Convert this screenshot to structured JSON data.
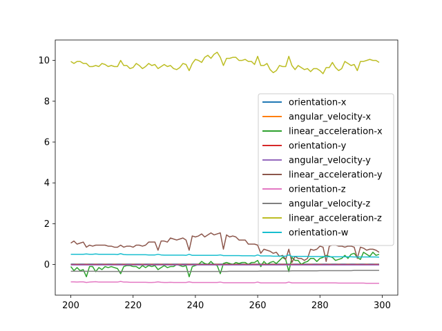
{
  "chart_data": {
    "type": "line",
    "title": "",
    "xlabel": "",
    "ylabel": "",
    "xlim": [
      195,
      305
    ],
    "ylim": [
      -1.5,
      11.0
    ],
    "xticks": [
      200,
      220,
      240,
      260,
      280,
      300
    ],
    "yticks": [
      0,
      2,
      4,
      6,
      8,
      10
    ],
    "grid": false,
    "legend_position": "center-right",
    "x": [
      200,
      201,
      202,
      203,
      204,
      205,
      206,
      207,
      208,
      209,
      210,
      211,
      212,
      213,
      214,
      215,
      216,
      217,
      218,
      219,
      220,
      221,
      222,
      223,
      224,
      225,
      226,
      227,
      228,
      229,
      230,
      231,
      232,
      233,
      234,
      235,
      236,
      237,
      238,
      239,
      240,
      241,
      242,
      243,
      244,
      245,
      246,
      247,
      248,
      249,
      250,
      251,
      252,
      253,
      254,
      255,
      256,
      257,
      258,
      259,
      260,
      261,
      262,
      263,
      264,
      265,
      266,
      267,
      268,
      269,
      270,
      271,
      272,
      273,
      274,
      275,
      276,
      277,
      278,
      279,
      280,
      281,
      282,
      283,
      284,
      285,
      286,
      287,
      288,
      289,
      290,
      291,
      292,
      293,
      294,
      295,
      296,
      297,
      298,
      299
    ],
    "series": [
      {
        "name": "orientation-x",
        "color": "#1f77b4",
        "values": [
          0.02,
          0.02,
          0.02,
          0.02,
          0.02,
          0.02,
          0.02,
          0.02,
          0.02,
          0.02,
          0.02,
          0.02,
          0.02,
          0.02,
          0.02,
          0.02,
          0.02,
          0.02,
          0.02,
          0.02,
          0.02,
          0.02,
          0.02,
          0.02,
          0.02,
          0.02,
          0.02,
          0.02,
          0.02,
          0.02,
          0.02,
          0.02,
          0.02,
          0.02,
          0.02,
          0.02,
          0.02,
          0.02,
          0.02,
          0.02,
          0.02,
          0.02,
          0.02,
          0.02,
          0.02,
          0.02,
          0.02,
          0.02,
          0.02,
          0.02,
          0.02,
          0.02,
          0.02,
          0.02,
          0.02,
          0.02,
          0.02,
          0.02,
          0.02,
          0.02,
          0.02,
          0.02,
          0.02,
          0.02,
          0.02,
          0.02,
          0.02,
          0.02,
          0.02,
          0.02,
          0.02,
          0.02,
          0.02,
          0.02,
          0.02,
          0.02,
          0.02,
          0.02,
          0.02,
          0.02,
          0.02,
          0.02,
          0.02,
          0.02,
          0.02,
          0.02,
          0.02,
          0.02,
          0.02,
          0.02,
          0.02,
          0.02,
          0.02,
          0.02,
          0.02,
          0.02,
          0.02,
          0.02,
          0.02,
          0.02
        ]
      },
      {
        "name": "angular_velocity-x",
        "color": "#ff7f0e",
        "values": [
          0.0,
          0.0,
          0.01,
          0.0,
          0.0,
          0.01,
          0.0,
          0.0,
          0.01,
          0.0,
          0.0,
          0.01,
          0.0,
          0.0,
          0.01,
          0.0,
          0.0,
          0.01,
          0.0,
          0.0,
          0.01,
          0.0,
          0.0,
          0.01,
          0.0,
          0.0,
          0.01,
          0.0,
          0.0,
          0.01,
          0.0,
          0.0,
          0.01,
          0.0,
          0.0,
          0.01,
          0.0,
          0.0,
          0.01,
          0.0,
          0.0,
          0.01,
          0.0,
          0.0,
          0.01,
          0.0,
          0.0,
          0.01,
          0.0,
          0.0,
          0.01,
          0.0,
          0.0,
          0.01,
          0.0,
          0.0,
          0.01,
          0.0,
          0.0,
          0.01,
          0.0,
          0.0,
          0.01,
          0.0,
          0.0,
          0.01,
          0.0,
          0.0,
          0.01,
          0.0,
          0.0,
          0.01,
          0.0,
          0.0,
          0.01,
          0.0,
          0.0,
          0.01,
          0.0,
          0.0,
          0.01,
          0.0,
          0.0,
          0.01,
          0.0,
          0.0,
          0.01,
          0.0,
          0.0,
          0.01,
          0.0,
          0.0,
          0.01,
          0.0,
          0.0,
          0.01,
          0.0,
          0.0,
          0.01,
          0.0
        ]
      },
      {
        "name": "linear_acceleration-x",
        "color": "#2ca02c",
        "values": [
          -0.1,
          -0.3,
          -0.15,
          -0.3,
          -0.25,
          -0.6,
          -0.1,
          -0.1,
          -0.35,
          -0.15,
          -0.25,
          -0.1,
          -0.15,
          -0.1,
          -0.15,
          -0.2,
          -0.45,
          -0.1,
          -0.05,
          -0.05,
          -0.1,
          -0.1,
          -0.2,
          -0.05,
          -0.15,
          -0.05,
          -0.1,
          -0.05,
          -0.25,
          -0.15,
          -0.05,
          -0.15,
          -0.1,
          -0.1,
          0.0,
          -0.05,
          -0.1,
          -0.05,
          -0.6,
          -0.1,
          -0.05,
          0.0,
          0.15,
          0.05,
          0.0,
          0.15,
          0.0,
          -0.05,
          -0.45,
          0.05,
          0.1,
          0.05,
          0.0,
          0.1,
          0.05,
          0.1,
          0.1,
          0.0,
          0.1,
          0.1,
          0.2,
          -0.1,
          0.15,
          0.0,
          0.1,
          0.15,
          0.05,
          0.2,
          0.35,
          0.25,
          -0.35,
          0.35,
          0.2,
          0.2,
          0.0,
          0.1,
          0.15,
          0.3,
          0.3,
          0.15,
          0.3,
          0.35,
          0.45,
          0.4,
          0.35,
          0.2,
          0.25,
          0.3,
          0.45,
          0.3,
          0.5,
          0.55,
          0.35,
          0.25,
          0.6,
          0.5,
          0.4,
          0.6,
          0.45,
          0.5
        ]
      },
      {
        "name": "orientation-y",
        "color": "#d62728",
        "values": [
          0.0,
          0.0,
          0.0,
          0.0,
          0.0,
          0.0,
          0.0,
          0.0,
          0.0,
          0.0,
          0.0,
          0.0,
          0.0,
          0.0,
          0.0,
          0.0,
          0.0,
          0.0,
          0.0,
          0.0,
          0.0,
          0.0,
          0.0,
          0.0,
          0.0,
          0.0,
          0.0,
          0.0,
          0.0,
          0.0,
          0.0,
          0.0,
          0.0,
          0.0,
          0.0,
          0.0,
          0.0,
          0.0,
          0.0,
          0.0,
          0.0,
          0.0,
          0.0,
          0.0,
          0.0,
          0.0,
          0.0,
          0.0,
          0.0,
          0.0,
          0.0,
          0.0,
          0.0,
          0.0,
          0.0,
          0.0,
          0.0,
          0.0,
          0.0,
          0.0,
          0.0,
          0.0,
          0.0,
          0.0,
          0.0,
          0.0,
          0.0,
          0.0,
          0.0,
          0.0,
          0.0,
          0.0,
          0.0,
          0.0,
          0.0,
          0.0,
          0.0,
          0.0,
          0.0,
          0.0,
          0.0,
          0.0,
          0.0,
          0.0,
          0.0,
          0.0,
          0.0,
          0.0,
          0.0,
          0.0,
          0.0,
          0.0,
          0.0,
          0.0,
          0.0,
          0.0,
          0.0,
          0.0,
          0.0,
          0.0
        ]
      },
      {
        "name": "angular_velocity-y",
        "color": "#9467bd",
        "values": [
          -0.02,
          -0.02,
          -0.02,
          -0.02,
          -0.02,
          -0.02,
          -0.02,
          -0.02,
          -0.02,
          -0.02,
          -0.02,
          -0.02,
          -0.02,
          -0.02,
          -0.02,
          -0.02,
          -0.02,
          -0.02,
          -0.02,
          -0.02,
          -0.02,
          -0.02,
          -0.02,
          -0.02,
          -0.02,
          -0.02,
          -0.02,
          -0.02,
          -0.02,
          -0.02,
          -0.02,
          -0.02,
          -0.02,
          -0.02,
          -0.02,
          -0.02,
          -0.02,
          -0.02,
          -0.02,
          -0.02,
          -0.02,
          -0.02,
          -0.02,
          -0.02,
          -0.02,
          -0.02,
          -0.02,
          -0.02,
          -0.02,
          -0.02,
          -0.02,
          -0.02,
          -0.02,
          -0.02,
          -0.02,
          -0.02,
          -0.02,
          -0.02,
          -0.02,
          -0.02,
          -0.02,
          -0.02,
          -0.02,
          -0.02,
          -0.02,
          -0.02,
          -0.02,
          -0.02,
          -0.02,
          -0.02,
          -0.02,
          -0.02,
          -0.02,
          -0.02,
          -0.02,
          -0.02,
          -0.02,
          -0.02,
          -0.02,
          -0.02,
          -0.02,
          -0.02,
          -0.02,
          -0.02,
          -0.02,
          -0.02,
          -0.02,
          -0.02,
          -0.02,
          -0.02,
          -0.02,
          -0.02,
          -0.02,
          -0.02,
          -0.02,
          -0.02,
          -0.02,
          -0.02,
          -0.02,
          -0.02
        ]
      },
      {
        "name": "linear_acceleration-y",
        "color": "#8c564b",
        "values": [
          1.05,
          1.15,
          1.0,
          1.05,
          1.1,
          0.85,
          0.95,
          0.9,
          0.95,
          0.95,
          0.95,
          0.95,
          0.9,
          0.9,
          0.85,
          0.85,
          0.95,
          0.85,
          0.9,
          0.9,
          0.85,
          0.95,
          0.95,
          0.9,
          0.95,
          1.1,
          1.1,
          1.1,
          0.7,
          1.15,
          1.15,
          1.1,
          1.3,
          1.25,
          1.2,
          1.25,
          1.3,
          1.2,
          0.7,
          1.4,
          1.35,
          1.4,
          1.5,
          1.35,
          1.45,
          1.55,
          1.45,
          1.5,
          1.55,
          0.75,
          1.45,
          1.35,
          1.4,
          1.35,
          1.2,
          1.2,
          1.2,
          1.0,
          1.0,
          1.0,
          0.95,
          0.55,
          0.75,
          0.7,
          0.65,
          0.55,
          0.6,
          0.4,
          0.45,
          0.25,
          0.75,
          0.1,
          0.4,
          0.3,
          0.3,
          0.2,
          0.3,
          0.75,
          0.7,
          0.75,
          0.9,
          0.85,
          0.15,
          0.9,
          0.95,
          0.95,
          0.9,
          0.9,
          0.85,
          0.9,
          0.9,
          0.85,
          0.3,
          0.85,
          0.8,
          0.7,
          0.75,
          0.75,
          0.7,
          0.6
        ]
      },
      {
        "name": "orientation-z",
        "color": "#e377c2",
        "values": [
          -0.85,
          -0.85,
          -0.86,
          -0.85,
          -0.85,
          -0.88,
          -0.86,
          -0.85,
          -0.84,
          -0.86,
          -0.86,
          -0.86,
          -0.86,
          -0.86,
          -0.86,
          -0.86,
          -0.83,
          -0.86,
          -0.86,
          -0.87,
          -0.87,
          -0.87,
          -0.87,
          -0.87,
          -0.87,
          -0.88,
          -0.88,
          -0.87,
          -0.85,
          -0.87,
          -0.88,
          -0.88,
          -0.87,
          -0.88,
          -0.88,
          -0.88,
          -0.88,
          -0.88,
          -0.85,
          -0.88,
          -0.88,
          -0.88,
          -0.88,
          -0.88,
          -0.88,
          -0.88,
          -0.88,
          -0.88,
          -0.86,
          -0.89,
          -0.89,
          -0.89,
          -0.89,
          -0.89,
          -0.89,
          -0.89,
          -0.89,
          -0.89,
          -0.89,
          -0.89,
          -0.86,
          -0.9,
          -0.9,
          -0.9,
          -0.9,
          -0.9,
          -0.9,
          -0.9,
          -0.9,
          -0.9,
          -0.86,
          -0.9,
          -0.9,
          -0.9,
          -0.9,
          -0.9,
          -0.9,
          -0.9,
          -0.9,
          -0.9,
          -0.9,
          -0.9,
          -0.9,
          -0.9,
          -0.9,
          -0.9,
          -0.91,
          -0.91,
          -0.91,
          -0.91,
          -0.91,
          -0.91,
          -0.91,
          -0.91,
          -0.91,
          -0.92,
          -0.92,
          -0.92,
          -0.92,
          -0.92
        ]
      },
      {
        "name": "angular_velocity-z",
        "color": "#7f7f7f",
        "values": [
          -0.33,
          -0.33,
          -0.33,
          -0.33,
          -0.33,
          -0.33,
          -0.33,
          -0.33,
          -0.33,
          -0.34,
          -0.34,
          -0.34,
          -0.34,
          -0.34,
          -0.34,
          -0.34,
          -0.34,
          -0.34,
          -0.34,
          -0.34,
          -0.34,
          -0.34,
          -0.34,
          -0.34,
          -0.34,
          -0.34,
          -0.34,
          -0.34,
          -0.34,
          -0.34,
          -0.34,
          -0.34,
          -0.34,
          -0.34,
          -0.34,
          -0.34,
          -0.34,
          -0.34,
          -0.34,
          -0.34,
          -0.34,
          -0.34,
          -0.34,
          -0.34,
          -0.34,
          -0.34,
          -0.34,
          -0.34,
          -0.34,
          -0.34,
          -0.34,
          -0.33,
          -0.33,
          -0.33,
          -0.33,
          -0.33,
          -0.33,
          -0.33,
          -0.33,
          -0.33,
          -0.33,
          -0.32,
          -0.32,
          -0.32,
          -0.32,
          -0.32,
          -0.32,
          -0.32,
          -0.32,
          -0.32,
          -0.32,
          -0.31,
          -0.31,
          -0.31,
          -0.31,
          -0.31,
          -0.31,
          -0.31,
          -0.31,
          -0.31,
          -0.3,
          -0.3,
          -0.3,
          -0.3,
          -0.3,
          -0.3,
          -0.3,
          -0.3,
          -0.3,
          -0.3,
          -0.3,
          -0.29,
          -0.29,
          -0.29,
          -0.29,
          -0.29,
          -0.29,
          -0.29,
          -0.29,
          -0.29
        ]
      },
      {
        "name": "linear_acceleration-z",
        "color": "#bcbd22",
        "values": [
          9.95,
          9.85,
          9.95,
          9.95,
          9.85,
          9.85,
          9.7,
          9.7,
          9.75,
          9.7,
          9.85,
          9.8,
          9.7,
          9.75,
          9.7,
          9.7,
          10.0,
          9.75,
          9.75,
          9.6,
          9.65,
          9.85,
          9.75,
          9.6,
          9.7,
          9.85,
          9.75,
          9.8,
          9.6,
          9.7,
          9.8,
          9.7,
          9.75,
          9.6,
          9.55,
          9.65,
          9.85,
          9.8,
          9.5,
          9.85,
          10.05,
          10.0,
          9.9,
          10.15,
          10.25,
          10.1,
          10.3,
          10.4,
          10.15,
          9.75,
          10.1,
          10.1,
          10.15,
          10.15,
          10.0,
          10.0,
          10.05,
          9.95,
          9.95,
          9.8,
          10.2,
          9.75,
          9.75,
          9.85,
          9.55,
          9.4,
          9.5,
          9.75,
          9.7,
          9.7,
          10.2,
          9.75,
          9.55,
          9.75,
          9.65,
          9.55,
          9.6,
          9.45,
          9.6,
          9.6,
          9.5,
          9.35,
          9.65,
          9.65,
          9.9,
          9.65,
          9.5,
          9.6,
          9.95,
          9.85,
          9.75,
          9.8,
          9.5,
          9.95,
          9.95,
          10.0,
          10.05,
          10.0,
          10.0,
          9.9
        ]
      },
      {
        "name": "orientation-w",
        "color": "#17becf",
        "values": [
          0.5,
          0.5,
          0.5,
          0.5,
          0.5,
          0.52,
          0.5,
          0.5,
          0.52,
          0.5,
          0.5,
          0.5,
          0.5,
          0.5,
          0.5,
          0.49,
          0.53,
          0.49,
          0.48,
          0.48,
          0.48,
          0.48,
          0.48,
          0.48,
          0.48,
          0.47,
          0.47,
          0.47,
          0.5,
          0.47,
          0.46,
          0.46,
          0.46,
          0.46,
          0.46,
          0.46,
          0.46,
          0.45,
          0.5,
          0.45,
          0.45,
          0.45,
          0.45,
          0.45,
          0.45,
          0.45,
          0.45,
          0.45,
          0.47,
          0.44,
          0.44,
          0.44,
          0.44,
          0.44,
          0.44,
          0.43,
          0.43,
          0.43,
          0.43,
          0.42,
          0.47,
          0.42,
          0.42,
          0.42,
          0.42,
          0.41,
          0.41,
          0.41,
          0.41,
          0.41,
          0.47,
          0.4,
          0.4,
          0.4,
          0.4,
          0.4,
          0.4,
          0.39,
          0.39,
          0.39,
          0.39,
          0.39,
          0.39,
          0.38,
          0.38,
          0.38,
          0.38,
          0.38,
          0.38,
          0.38,
          0.38,
          0.37,
          0.37,
          0.37,
          0.37,
          0.37,
          0.37,
          0.37,
          0.37,
          0.36
        ]
      }
    ]
  }
}
